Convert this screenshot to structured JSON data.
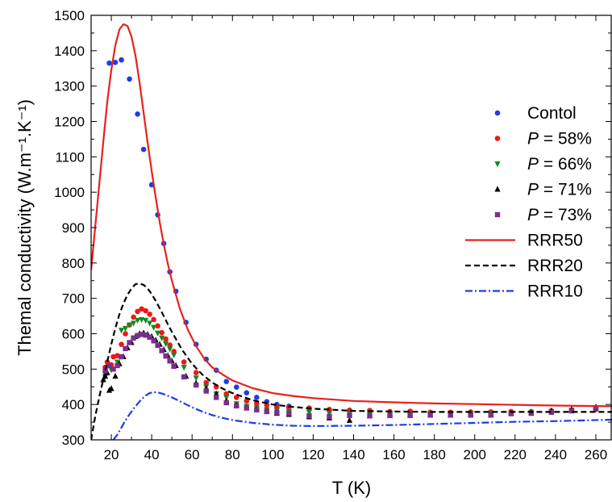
{
  "chart_data": {
    "type": "scatter",
    "xlabel": "T (K)",
    "ylabel": "Themal conductivity (W.m⁻¹.K⁻¹)",
    "xlim": [
      10,
      268
    ],
    "ylim": [
      300,
      1500
    ],
    "x_ticks": [
      20,
      40,
      60,
      80,
      100,
      120,
      140,
      160,
      180,
      200,
      220,
      240,
      260
    ],
    "y_ticks": [
      300,
      400,
      500,
      600,
      700,
      800,
      900,
      1000,
      1100,
      1200,
      1300,
      1400,
      1500
    ],
    "legend_position": "right",
    "series": [
      {
        "name": "Contol",
        "name_prefix": "",
        "kind": "points",
        "marker": "circle",
        "color": "#1a3ee8",
        "points": [
          [
            19,
            1365
          ],
          [
            22,
            1367
          ],
          [
            25,
            1374
          ],
          [
            29,
            1320
          ],
          [
            33,
            1221
          ],
          [
            36,
            1121
          ],
          [
            40,
            1021
          ],
          [
            43,
            936
          ],
          [
            46,
            855
          ],
          [
            49,
            775
          ],
          [
            52,
            720
          ],
          [
            57,
            632
          ],
          [
            62,
            570
          ],
          [
            67,
            528
          ],
          [
            72,
            497
          ],
          [
            77,
            465
          ],
          [
            82,
            449
          ],
          [
            87,
            433
          ],
          [
            92,
            420
          ],
          [
            97,
            408
          ],
          [
            102,
            400
          ],
          [
            108,
            395
          ]
        ]
      },
      {
        "name": "= 58%",
        "name_prefix": "P",
        "kind": "points",
        "marker": "circle",
        "color": "#f21616",
        "points": [
          [
            17,
            505
          ],
          [
            18,
            520
          ],
          [
            20,
            512
          ],
          [
            21,
            535
          ],
          [
            23,
            538
          ],
          [
            25,
            570
          ],
          [
            27,
            600
          ],
          [
            29,
            625
          ],
          [
            31,
            647
          ],
          [
            33,
            663
          ],
          [
            35,
            670
          ],
          [
            37,
            665
          ],
          [
            39,
            655
          ],
          [
            41,
            640
          ],
          [
            43,
            622
          ],
          [
            45,
            603
          ],
          [
            47,
            585
          ],
          [
            49,
            568
          ],
          [
            51,
            550
          ],
          [
            56,
            520
          ],
          [
            62,
            490
          ],
          [
            67,
            462
          ],
          [
            72,
            450
          ],
          [
            77,
            430
          ],
          [
            82,
            420
          ],
          [
            87,
            410
          ],
          [
            92,
            403
          ],
          [
            97,
            398
          ],
          [
            102,
            393
          ],
          [
            108,
            392
          ],
          [
            118,
            390
          ],
          [
            128,
            386
          ],
          [
            138,
            384
          ],
          [
            148,
            383
          ],
          [
            158,
            380
          ],
          [
            168,
            381
          ],
          [
            178,
            378
          ],
          [
            188,
            378
          ],
          [
            198,
            379
          ],
          [
            208,
            379
          ],
          [
            218,
            380
          ],
          [
            228,
            380
          ],
          [
            238,
            382
          ],
          [
            248,
            384
          ],
          [
            260,
            386
          ]
        ]
      },
      {
        "name": "= 66%",
        "name_prefix": "P",
        "kind": "points",
        "marker": "triangle-down",
        "color": "#138a1f",
        "points": [
          [
            17,
            478
          ],
          [
            20,
            498
          ],
          [
            23,
            520
          ],
          [
            25,
            610
          ],
          [
            27,
            615
          ],
          [
            29,
            625
          ],
          [
            31,
            630
          ],
          [
            33,
            638
          ],
          [
            35,
            640
          ],
          [
            37,
            638
          ],
          [
            39,
            630
          ],
          [
            41,
            618
          ],
          [
            43,
            602
          ],
          [
            45,
            588
          ],
          [
            47,
            572
          ],
          [
            49,
            557
          ],
          [
            51,
            540
          ],
          [
            56,
            505
          ],
          [
            62,
            475
          ],
          [
            67,
            450
          ],
          [
            72,
            430
          ],
          [
            77,
            420
          ],
          [
            82,
            402
          ],
          [
            87,
            395
          ],
          [
            92,
            390
          ],
          [
            97,
            385
          ],
          [
            102,
            383
          ],
          [
            108,
            380
          ],
          [
            118,
            378
          ],
          [
            128,
            375
          ],
          [
            138,
            374
          ],
          [
            148,
            373
          ],
          [
            158,
            373
          ],
          [
            168,
            372
          ],
          [
            178,
            373
          ],
          [
            188,
            373
          ],
          [
            198,
            374
          ],
          [
            208,
            375
          ],
          [
            218,
            375
          ],
          [
            228,
            377
          ],
          [
            238,
            380
          ],
          [
            248,
            384
          ],
          [
            260,
            388
          ]
        ]
      },
      {
        "name": "= 71%",
        "name_prefix": "P",
        "kind": "points",
        "marker": "triangle-up",
        "color": "#000000",
        "points": [
          [
            16,
            470
          ],
          [
            17,
            480
          ],
          [
            18,
            490
          ],
          [
            19,
            440
          ],
          [
            20,
            445
          ],
          [
            22,
            480
          ],
          [
            24,
            515
          ],
          [
            26,
            535
          ],
          [
            28,
            560
          ],
          [
            30,
            575
          ],
          [
            32,
            592
          ],
          [
            34,
            600
          ],
          [
            36,
            602
          ],
          [
            38,
            598
          ],
          [
            40,
            592
          ],
          [
            42,
            582
          ],
          [
            44,
            570
          ],
          [
            46,
            555
          ],
          [
            48,
            538
          ],
          [
            50,
            523
          ],
          [
            52,
            510
          ],
          [
            57,
            480
          ],
          [
            62,
            460
          ],
          [
            67,
            445
          ],
          [
            72,
            430
          ],
          [
            77,
            410
          ],
          [
            82,
            398
          ],
          [
            87,
            390
          ],
          [
            92,
            385
          ],
          [
            97,
            380
          ],
          [
            102,
            375
          ],
          [
            108,
            372
          ],
          [
            118,
            365
          ],
          [
            128,
            362
          ],
          [
            138,
            355
          ],
          [
            148,
            368
          ],
          [
            158,
            369
          ],
          [
            168,
            370
          ],
          [
            178,
            370
          ],
          [
            188,
            370
          ],
          [
            198,
            374
          ],
          [
            208,
            370
          ],
          [
            218,
            375
          ],
          [
            228,
            376
          ],
          [
            238,
            382
          ],
          [
            248,
            386
          ],
          [
            260,
            393
          ]
        ]
      },
      {
        "name": "= 73%",
        "name_prefix": "P",
        "kind": "points",
        "marker": "square",
        "color": "#7b2d8e",
        "points": [
          [
            17,
            495
          ],
          [
            19,
            510
          ],
          [
            21,
            500
          ],
          [
            23,
            510
          ],
          [
            25,
            535
          ],
          [
            27,
            558
          ],
          [
            29,
            575
          ],
          [
            31,
            588
          ],
          [
            33,
            595
          ],
          [
            35,
            598
          ],
          [
            37,
            596
          ],
          [
            39,
            590
          ],
          [
            41,
            580
          ],
          [
            43,
            567
          ],
          [
            45,
            552
          ],
          [
            47,
            537
          ],
          [
            49,
            523
          ],
          [
            51,
            508
          ],
          [
            56,
            478
          ],
          [
            62,
            455
          ],
          [
            67,
            438
          ],
          [
            72,
            420
          ],
          [
            77,
            405
          ],
          [
            82,
            396
          ],
          [
            87,
            390
          ],
          [
            92,
            385
          ],
          [
            97,
            380
          ],
          [
            102,
            377
          ],
          [
            108,
            375
          ],
          [
            118,
            368
          ],
          [
            128,
            366
          ],
          [
            138,
            369
          ],
          [
            148,
            368
          ],
          [
            158,
            369
          ],
          [
            168,
            369
          ],
          [
            178,
            370
          ],
          [
            188,
            370
          ],
          [
            198,
            370
          ],
          [
            208,
            371
          ],
          [
            218,
            374
          ],
          [
            228,
            375
          ],
          [
            238,
            378
          ],
          [
            248,
            382
          ],
          [
            260,
            388
          ]
        ]
      },
      {
        "name": "RRR50",
        "name_prefix": "",
        "kind": "line",
        "dash": "solid",
        "color": "#e8211d",
        "points": [
          [
            10,
            780
          ],
          [
            12,
            900
          ],
          [
            14,
            1020
          ],
          [
            16,
            1140
          ],
          [
            18,
            1255
          ],
          [
            20,
            1345
          ],
          [
            22,
            1415
          ],
          [
            24,
            1460
          ],
          [
            26,
            1475
          ],
          [
            28,
            1470
          ],
          [
            30,
            1440
          ],
          [
            32,
            1385
          ],
          [
            34,
            1310
          ],
          [
            36,
            1225
          ],
          [
            38,
            1140
          ],
          [
            40,
            1060
          ],
          [
            42,
            985
          ],
          [
            44,
            915
          ],
          [
            46,
            853
          ],
          [
            48,
            798
          ],
          [
            50,
            750
          ],
          [
            54,
            670
          ],
          [
            58,
            610
          ],
          [
            62,
            565
          ],
          [
            66,
            530
          ],
          [
            70,
            505
          ],
          [
            75,
            485
          ],
          [
            80,
            468
          ],
          [
            90,
            446
          ],
          [
            100,
            432
          ],
          [
            110,
            424
          ],
          [
            120,
            418
          ],
          [
            140,
            410
          ],
          [
            160,
            406
          ],
          [
            180,
            403
          ],
          [
            200,
            401
          ],
          [
            220,
            399
          ],
          [
            240,
            397
          ],
          [
            268,
            395
          ]
        ]
      },
      {
        "name": "RRR20",
        "name_prefix": "",
        "kind": "line",
        "dash": "dash",
        "color": "#000000",
        "points": [
          [
            10,
            300
          ],
          [
            12,
            365
          ],
          [
            14,
            420
          ],
          [
            16,
            470
          ],
          [
            18,
            520
          ],
          [
            20,
            570
          ],
          [
            22,
            615
          ],
          [
            24,
            655
          ],
          [
            26,
            685
          ],
          [
            28,
            710
          ],
          [
            30,
            728
          ],
          [
            32,
            740
          ],
          [
            34,
            742
          ],
          [
            36,
            738
          ],
          [
            38,
            728
          ],
          [
            40,
            712
          ],
          [
            42,
            693
          ],
          [
            44,
            672
          ],
          [
            46,
            650
          ],
          [
            48,
            627
          ],
          [
            50,
            605
          ],
          [
            55,
            555
          ],
          [
            60,
            515
          ],
          [
            65,
            485
          ],
          [
            70,
            462
          ],
          [
            75,
            445
          ],
          [
            80,
            432
          ],
          [
            90,
            412
          ],
          [
            100,
            400
          ],
          [
            110,
            393
          ],
          [
            120,
            388
          ],
          [
            140,
            382
          ],
          [
            160,
            380
          ],
          [
            180,
            379
          ],
          [
            200,
            379
          ],
          [
            220,
            379
          ],
          [
            240,
            379
          ],
          [
            268,
            379
          ]
        ]
      },
      {
        "name": "RRR10",
        "name_prefix": "",
        "kind": "line",
        "dash": "dashdot",
        "color": "#1a3ee8",
        "points": [
          [
            21,
            300
          ],
          [
            23,
            315
          ],
          [
            25,
            335
          ],
          [
            27,
            355
          ],
          [
            29,
            372
          ],
          [
            31,
            388
          ],
          [
            33,
            402
          ],
          [
            35,
            415
          ],
          [
            37,
            425
          ],
          [
            39,
            432
          ],
          [
            41,
            435
          ],
          [
            43,
            434
          ],
          [
            45,
            431
          ],
          [
            47,
            427
          ],
          [
            50,
            420
          ],
          [
            55,
            406
          ],
          [
            60,
            392
          ],
          [
            65,
            380
          ],
          [
            70,
            370
          ],
          [
            75,
            362
          ],
          [
            80,
            356
          ],
          [
            90,
            348
          ],
          [
            100,
            343
          ],
          [
            110,
            340
          ],
          [
            120,
            339
          ],
          [
            140,
            340
          ],
          [
            160,
            342
          ],
          [
            180,
            345
          ],
          [
            200,
            348
          ],
          [
            220,
            351
          ],
          [
            240,
            353
          ],
          [
            268,
            357
          ]
        ]
      }
    ]
  }
}
